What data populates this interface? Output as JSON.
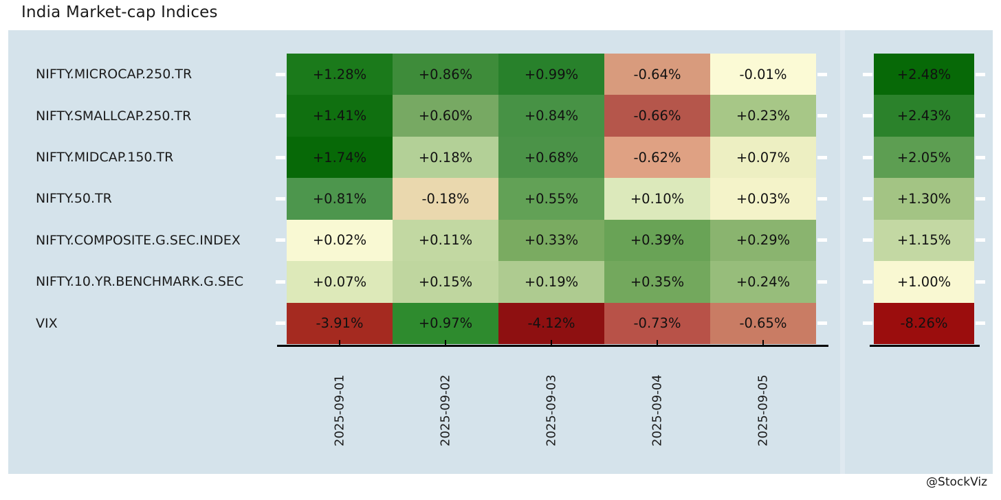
{
  "title": "India Market-cap Indices",
  "credit": "@StockViz",
  "colors": {
    "figure_bg": "#ffffff",
    "panel_bg": "#d5e3eb",
    "panel_divider": "#dfe9f0",
    "cell_text": "#111111",
    "label_text": "#1b1b1b",
    "axis_line": "#000000",
    "edge_tick": "#ffffff"
  },
  "chart_data": {
    "type": "heatmap",
    "title": "India Market-cap Indices",
    "x_categories": [
      "2025-09-01",
      "2025-09-02",
      "2025-09-03",
      "2025-09-04",
      "2025-09-05"
    ],
    "legend_position": "none",
    "grid": false,
    "rows": [
      {
        "label": "NIFTY.MICROCAP.250.TR",
        "values": [
          1.28,
          0.86,
          0.99,
          -0.64,
          -0.01
        ],
        "value_labels": [
          "+1.28%",
          "+0.86%",
          "+0.99%",
          "-0.64%",
          "-0.01%"
        ],
        "cell_colors": [
          "#1b7a1b",
          "#3e8c3a",
          "#28812b",
          "#d89b7d",
          "#fbfad5"
        ],
        "total": 2.48,
        "total_label": "+2.48%",
        "total_color": "#076907"
      },
      {
        "label": "NIFTY.SMALLCAP.250.TR",
        "values": [
          1.41,
          0.6,
          0.84,
          -0.66,
          0.23
        ],
        "value_labels": [
          "+1.41%",
          "+0.60%",
          "+0.84%",
          "-0.66%",
          "+0.23%"
        ],
        "cell_colors": [
          "#107010",
          "#77a963",
          "#479245",
          "#b5564b",
          "#a7c787"
        ],
        "total": 2.43,
        "total_label": "+2.43%",
        "total_color": "#2b822b"
      },
      {
        "label": "NIFTY.MIDCAP.150.TR",
        "values": [
          1.74,
          0.18,
          0.68,
          -0.62,
          0.07
        ],
        "value_labels": [
          "+1.74%",
          "+0.18%",
          "+0.68%",
          "-0.62%",
          "+0.07%"
        ],
        "cell_colors": [
          "#076907",
          "#b3d097",
          "#4b9348",
          "#dfa183",
          "#edefc2"
        ],
        "total": 2.05,
        "total_label": "+2.05%",
        "total_color": "#5d9e52"
      },
      {
        "label": "NIFTY.50.TR",
        "values": [
          0.81,
          -0.18,
          0.55,
          0.1,
          0.03
        ],
        "value_labels": [
          "+0.81%",
          "-0.18%",
          "+0.55%",
          "+0.10%",
          "+0.03%"
        ],
        "cell_colors": [
          "#4d964d",
          "#ead8ae",
          "#62a156",
          "#dce9bb",
          "#f4f3c9"
        ],
        "total": 1.3,
        "total_label": "+1.30%",
        "total_color": "#a3c484"
      },
      {
        "label": "NIFTY.COMPOSITE.G.SEC.INDEX",
        "values": [
          0.02,
          0.11,
          0.33,
          0.39,
          0.29
        ],
        "value_labels": [
          "+0.02%",
          "+0.11%",
          "+0.33%",
          "+0.39%",
          "+0.29%"
        ],
        "cell_colors": [
          "#f9f9d3",
          "#c2d8a2",
          "#7aab61",
          "#69a356",
          "#8ab46f"
        ],
        "total": 1.15,
        "total_label": "+1.15%",
        "total_color": "#c3d8a3"
      },
      {
        "label": "NIFTY.10.YR.BENCHMARK.G.SEC",
        "values": [
          0.07,
          0.15,
          0.19,
          0.35,
          0.24
        ],
        "value_labels": [
          "+0.07%",
          "+0.15%",
          "+0.19%",
          "+0.35%",
          "+0.24%"
        ],
        "cell_colors": [
          "#dde9b9",
          "#bfd69f",
          "#aecb90",
          "#73a85d",
          "#97bd7b"
        ],
        "total": 1.0,
        "total_label": "+1.00%",
        "total_color": "#f9f8d2"
      },
      {
        "label": "VIX",
        "values": [
          -3.91,
          0.97,
          -4.12,
          -0.73,
          -0.65
        ],
        "value_labels": [
          "-3.91%",
          "+0.97%",
          "-4.12%",
          "-0.73%",
          "-0.65%"
        ],
        "cell_colors": [
          "#a52a20",
          "#2e8b2e",
          "#8e1011",
          "#b85248",
          "#c97c64"
        ],
        "total": -8.26,
        "total_label": "-8.26%",
        "total_color": "#9b0d0d"
      }
    ]
  }
}
